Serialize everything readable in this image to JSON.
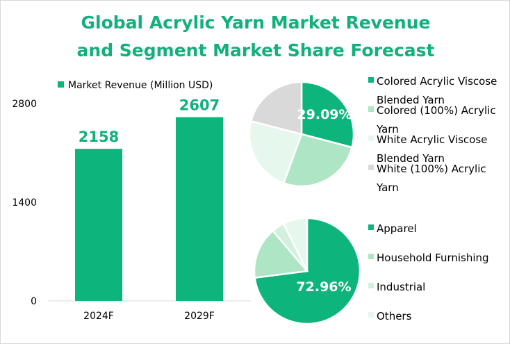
{
  "chart_data": [
    {
      "type": "bar",
      "title": "Global Acrylic Yarn Market Revenue and Segment Market Share Forecast",
      "title_lines": [
        "Global Acrylic Yarn Market Revenue",
        "and Segment Market Share Forecast"
      ],
      "legend": "Market Revenue (Million USD)",
      "categories": [
        "2024F",
        "2029F"
      ],
      "values": [
        2158,
        2607
      ],
      "yticks": [
        0,
        1400,
        2800
      ],
      "ylim": [
        0,
        2800
      ],
      "color": "#0db57c",
      "grid": false
    },
    {
      "type": "pie",
      "labels": [
        "Colored Acrylic Viscose Blended Yarn",
        "Colored (100%) Acrylic Yarn",
        "White Acrylic Viscose Blended Yarn",
        "White (100%) Acrylic Yarn"
      ],
      "legend_lines": [
        [
          "Colored Acrylic Viscose",
          "Blended Yarn"
        ],
        [
          "Colored (100%) Acrylic",
          "Yarn"
        ],
        [
          "White Acrylic Viscose",
          "Blended Yarn"
        ],
        [
          "White (100%) Acrylic",
          "Yarn"
        ]
      ],
      "values": [
        29.09,
        26.5,
        23.4,
        21.01
      ],
      "data_label": "29.09%",
      "colors": [
        "#0db57c",
        "#aee6c5",
        "#e6f7ee",
        "#d9d9d9"
      ],
      "legend_position": "right"
    },
    {
      "type": "pie",
      "labels": [
        "Apparel",
        "Household Furnishing",
        "Industrial",
        "Others"
      ],
      "values": [
        72.96,
        15.8,
        3.9,
        7.34
      ],
      "data_label": "72.96%",
      "colors": [
        "#0db57c",
        "#aee6c5",
        "#d2f0de",
        "#e6f7ee"
      ],
      "legend_position": "right"
    }
  ]
}
